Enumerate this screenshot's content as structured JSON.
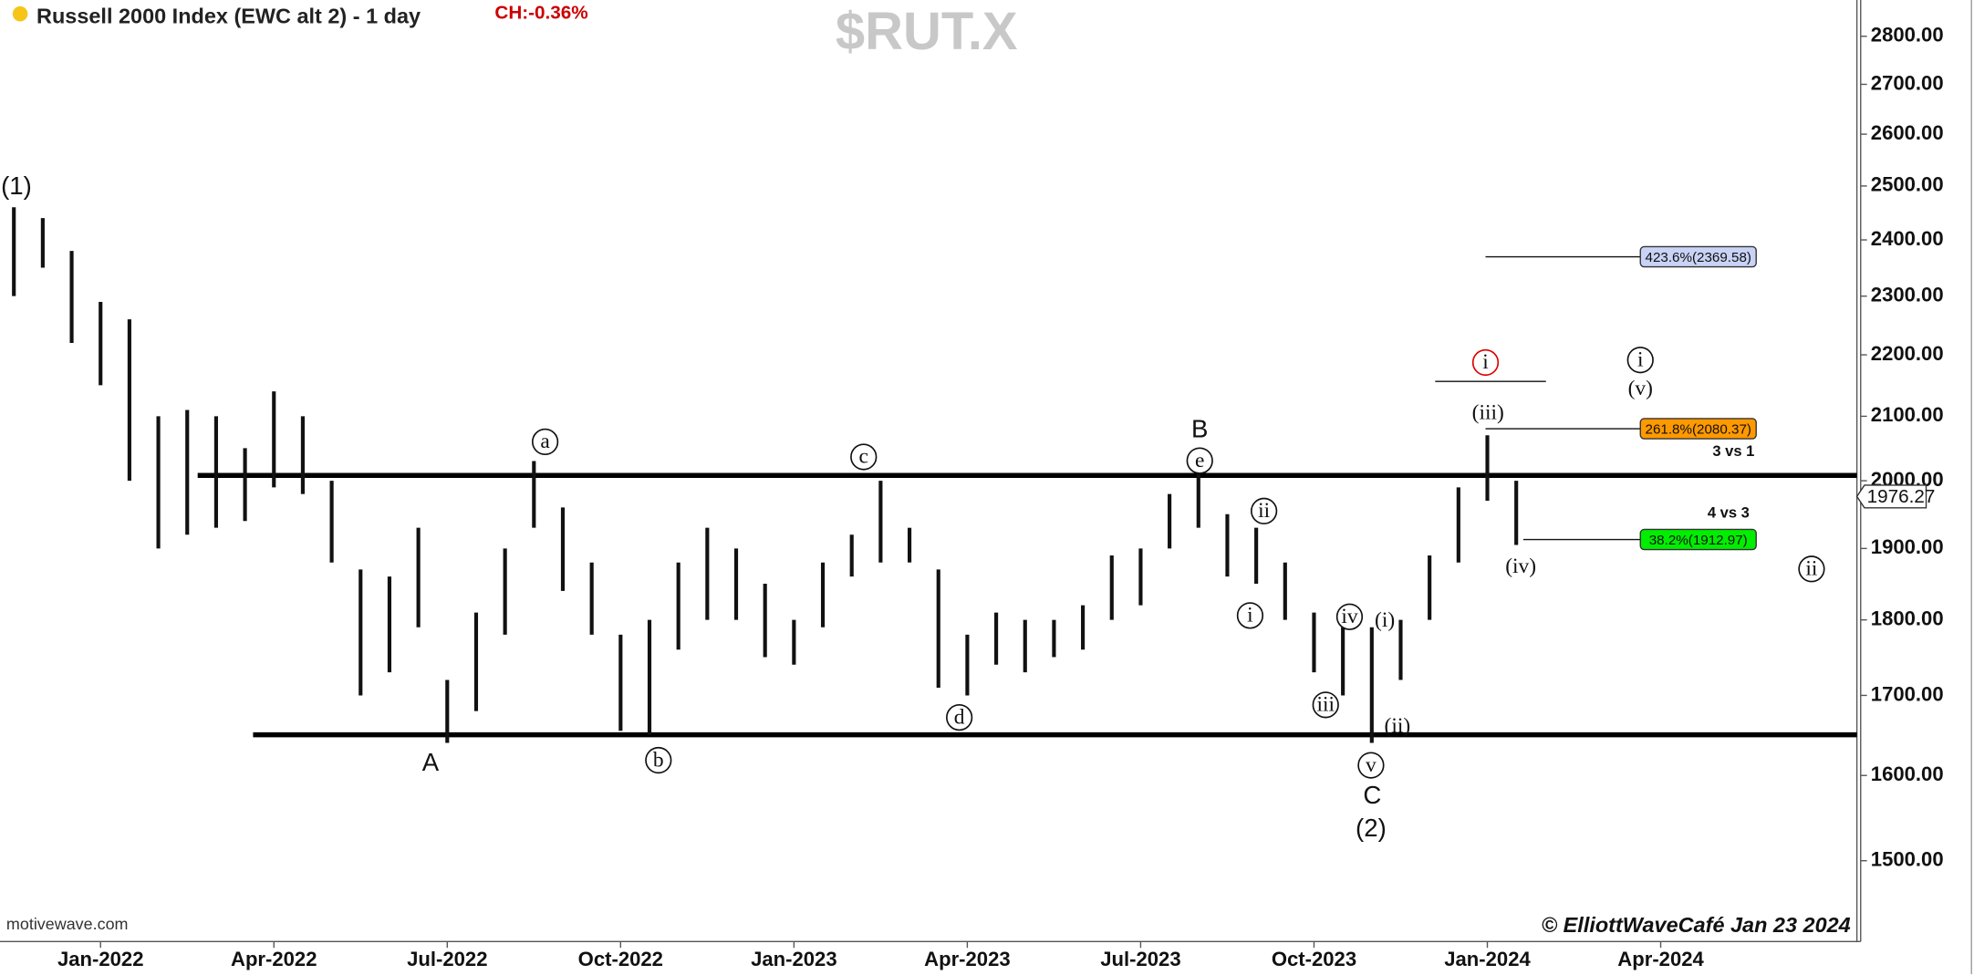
{
  "chart_data": {
    "type": "ohlc",
    "title": "Russell 2000 Index (EWC alt 2) - 1 day",
    "change": "CH:-0.36%",
    "symbol": "$RUT.X",
    "source": "motivewave.com",
    "credit": "© ElliottWaveCafé Jan 23 2024",
    "log_scale": true,
    "color": "#111111",
    "categories": [
      null,
      null,
      null,
      "Jan-2022",
      null,
      null,
      null,
      null,
      null,
      "Apr-2022",
      null,
      null,
      null,
      null,
      null,
      "Jul-2022",
      null,
      null,
      null,
      null,
      null,
      "Oct-2022",
      null,
      null,
      null,
      null,
      null,
      "Jan-2023",
      null,
      null,
      null,
      null,
      null,
      "Apr-2023",
      null,
      null,
      null,
      null,
      null,
      "Jul-2023",
      null,
      null,
      null,
      null,
      null,
      "Oct-2023",
      null,
      null,
      null,
      null,
      null,
      "Jan-2024",
      null,
      null,
      null,
      null,
      null,
      "Apr-2024",
      null,
      null,
      null,
      null,
      null,
      null
    ],
    "high": [
      2460,
      2440,
      2380,
      2290,
      2260,
      2100,
      2110,
      2100,
      2050,
      2140,
      2100,
      2000,
      1870,
      1860,
      1930,
      1720,
      1810,
      1900,
      2030,
      1960,
      1880,
      1780,
      1800,
      1880,
      1930,
      1900,
      1850,
      1800,
      1880,
      1920,
      2000,
      1930,
      1870,
      1780,
      1810,
      1800,
      1800,
      1820,
      1890,
      1900,
      1980,
      2010,
      1950,
      1930,
      1880,
      1810,
      1790,
      1790,
      1800,
      1890,
      1990,
      2070,
      2000,
      null,
      null,
      null,
      null,
      null,
      null,
      null,
      null,
      null,
      null,
      null
    ],
    "low": [
      2300,
      2350,
      2220,
      2150,
      2000,
      1900,
      1920,
      1930,
      1940,
      1990,
      1980,
      1880,
      1700,
      1730,
      1790,
      1640,
      1680,
      1780,
      1930,
      1840,
      1780,
      1655,
      1650,
      1760,
      1800,
      1800,
      1750,
      1740,
      1790,
      1860,
      1880,
      1880,
      1710,
      1700,
      1740,
      1730,
      1750,
      1760,
      1800,
      1820,
      1900,
      1930,
      1860,
      1850,
      1800,
      1730,
      1700,
      1640,
      1720,
      1800,
      1880,
      1970,
      1905,
      null,
      null,
      null,
      null,
      null,
      null,
      null,
      null,
      null,
      null,
      null
    ],
    "last_price": 1976.27,
    "ylim": [
      1411,
      2878
    ],
    "yticks": [
      {
        "value": 1500,
        "label": "1500.00"
      },
      {
        "value": 1600,
        "label": "1600.00"
      },
      {
        "value": 1700,
        "label": "1700.00"
      },
      {
        "value": 1800,
        "label": "1800.00"
      },
      {
        "value": 1900,
        "label": "1900.00"
      },
      {
        "value": 2000,
        "label": "2000.00"
      },
      {
        "value": 2100,
        "label": "2100.00"
      },
      {
        "value": 2200,
        "label": "2200.00"
      },
      {
        "value": 2300,
        "label": "2300.00"
      },
      {
        "value": 2400,
        "label": "2400.00"
      },
      {
        "value": 2500,
        "label": "2500.00"
      },
      {
        "value": 2600,
        "label": "2600.00"
      },
      {
        "value": 2700,
        "label": "2700.00"
      },
      {
        "value": 2800,
        "label": "2800.00"
      }
    ],
    "levels": [
      2008,
      1650
    ],
    "fib_levels": [
      {
        "label": "423.6%(2369.58)",
        "value": 2369.58,
        "color": "#c9d3f5"
      },
      {
        "label": "261.8%(2080.37)",
        "value": 2080.37,
        "color": "#ff9900"
      },
      {
        "label": "38.2%(1912.97)",
        "value": 1912.97,
        "color": "#00ee00"
      }
    ],
    "annotations": [
      "(1)",
      "a",
      "A",
      "b",
      "c",
      "d",
      "B",
      "e",
      "ii",
      "i",
      "iv",
      "iii",
      "(i)",
      "(ii)",
      "v",
      "C",
      "(2)",
      "i",
      "(iii)",
      "(iv)",
      "i",
      "(v)",
      "ii",
      "3 vs 1",
      "4 vs 3"
    ]
  }
}
